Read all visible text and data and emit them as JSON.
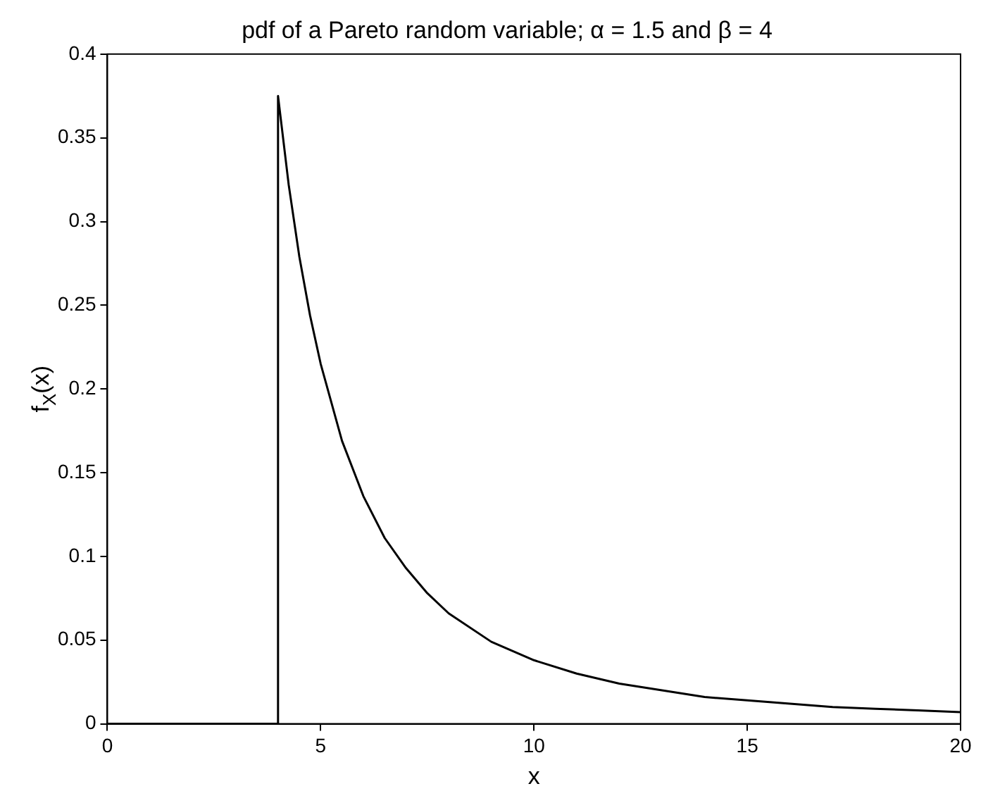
{
  "chart_data": {
    "type": "line",
    "title": "pdf of a Pareto random variable; α = 1.5 and β = 4",
    "xlabel": "x",
    "ylabel": "f$_{X}$(x)",
    "series": [
      {
        "color": "#000000",
        "x": [
          0,
          4,
          4,
          4.25,
          4.5,
          4.75,
          5,
          5.5,
          6,
          6.5,
          7,
          7.5,
          8,
          9,
          10,
          11,
          12,
          13,
          14,
          15,
          16,
          17,
          18,
          19,
          20
        ],
        "values": [
          0,
          0,
          0.375,
          0.322,
          0.279,
          0.244,
          0.215,
          0.169,
          0.136,
          0.111,
          0.093,
          0.078,
          0.066,
          0.049,
          0.038,
          0.03,
          0.024,
          0.02,
          0.016,
          0.014,
          0.012,
          0.01,
          0.009,
          0.008,
          0.007
        ]
      }
    ],
    "xlim": [
      0,
      20
    ],
    "xticks": [
      0,
      5,
      10,
      15,
      20
    ],
    "ylim": [
      0,
      0.4
    ],
    "yticks": [
      0,
      0.05,
      0.1,
      0.15,
      0.2,
      0.25,
      0.3,
      0.35,
      0.4
    ],
    "grid": false,
    "legend": false,
    "marker": "none",
    "line_style": "solid"
  }
}
